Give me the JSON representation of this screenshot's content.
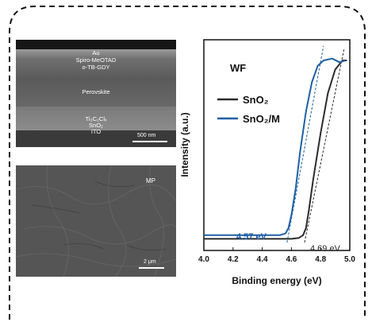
{
  "sem_cross_section": {
    "layers": [
      "Au",
      "Spiro-MeOTAD",
      "o-TB-GDY",
      "Perovskite",
      "Ti₃C₂Clₓ",
      "SnO₂",
      "ITO"
    ],
    "scale_bar": "500 nm"
  },
  "sem_top_view": {
    "label": "MP",
    "scale_bar": "2 μm"
  },
  "chart_data": {
    "type": "line",
    "title": "WF",
    "xlabel": "Binding energy (eV)",
    "ylabel": "Intensity (a.u.)",
    "xlim": [
      4.0,
      5.0
    ],
    "x_ticks": [
      "4.0",
      "4.2",
      "4.4",
      "4.6",
      "4.8",
      "5.0"
    ],
    "legend_placement": "center-left",
    "series": [
      {
        "name": "SnO₂",
        "color": "#2b2b2b",
        "points": [
          [
            4.0,
            0.02
          ],
          [
            4.6,
            0.02
          ],
          [
            4.65,
            0.025
          ],
          [
            4.68,
            0.04
          ],
          [
            4.7,
            0.08
          ],
          [
            4.72,
            0.18
          ],
          [
            4.75,
            0.35
          ],
          [
            4.8,
            0.6
          ],
          [
            4.85,
            0.82
          ],
          [
            4.9,
            0.95
          ],
          [
            4.95,
            1.0
          ],
          [
            4.98,
            1.0
          ]
        ]
      },
      {
        "name": "SnO₂/M",
        "color": "#1f5fa6",
        "points": [
          [
            4.0,
            0.04
          ],
          [
            4.52,
            0.04
          ],
          [
            4.56,
            0.05
          ],
          [
            4.58,
            0.08
          ],
          [
            4.6,
            0.15
          ],
          [
            4.63,
            0.3
          ],
          [
            4.66,
            0.5
          ],
          [
            4.7,
            0.72
          ],
          [
            4.74,
            0.88
          ],
          [
            4.78,
            0.97
          ],
          [
            4.82,
            1.0
          ],
          [
            4.88,
            1.01
          ],
          [
            4.93,
            0.99
          ],
          [
            4.97,
            1.0
          ]
        ]
      }
    ],
    "annotations": [
      {
        "text": "4.57 eV",
        "color": "#1f5fa6"
      },
      {
        "text": "4.69 eV",
        "color": "#2b2b2b"
      }
    ]
  }
}
